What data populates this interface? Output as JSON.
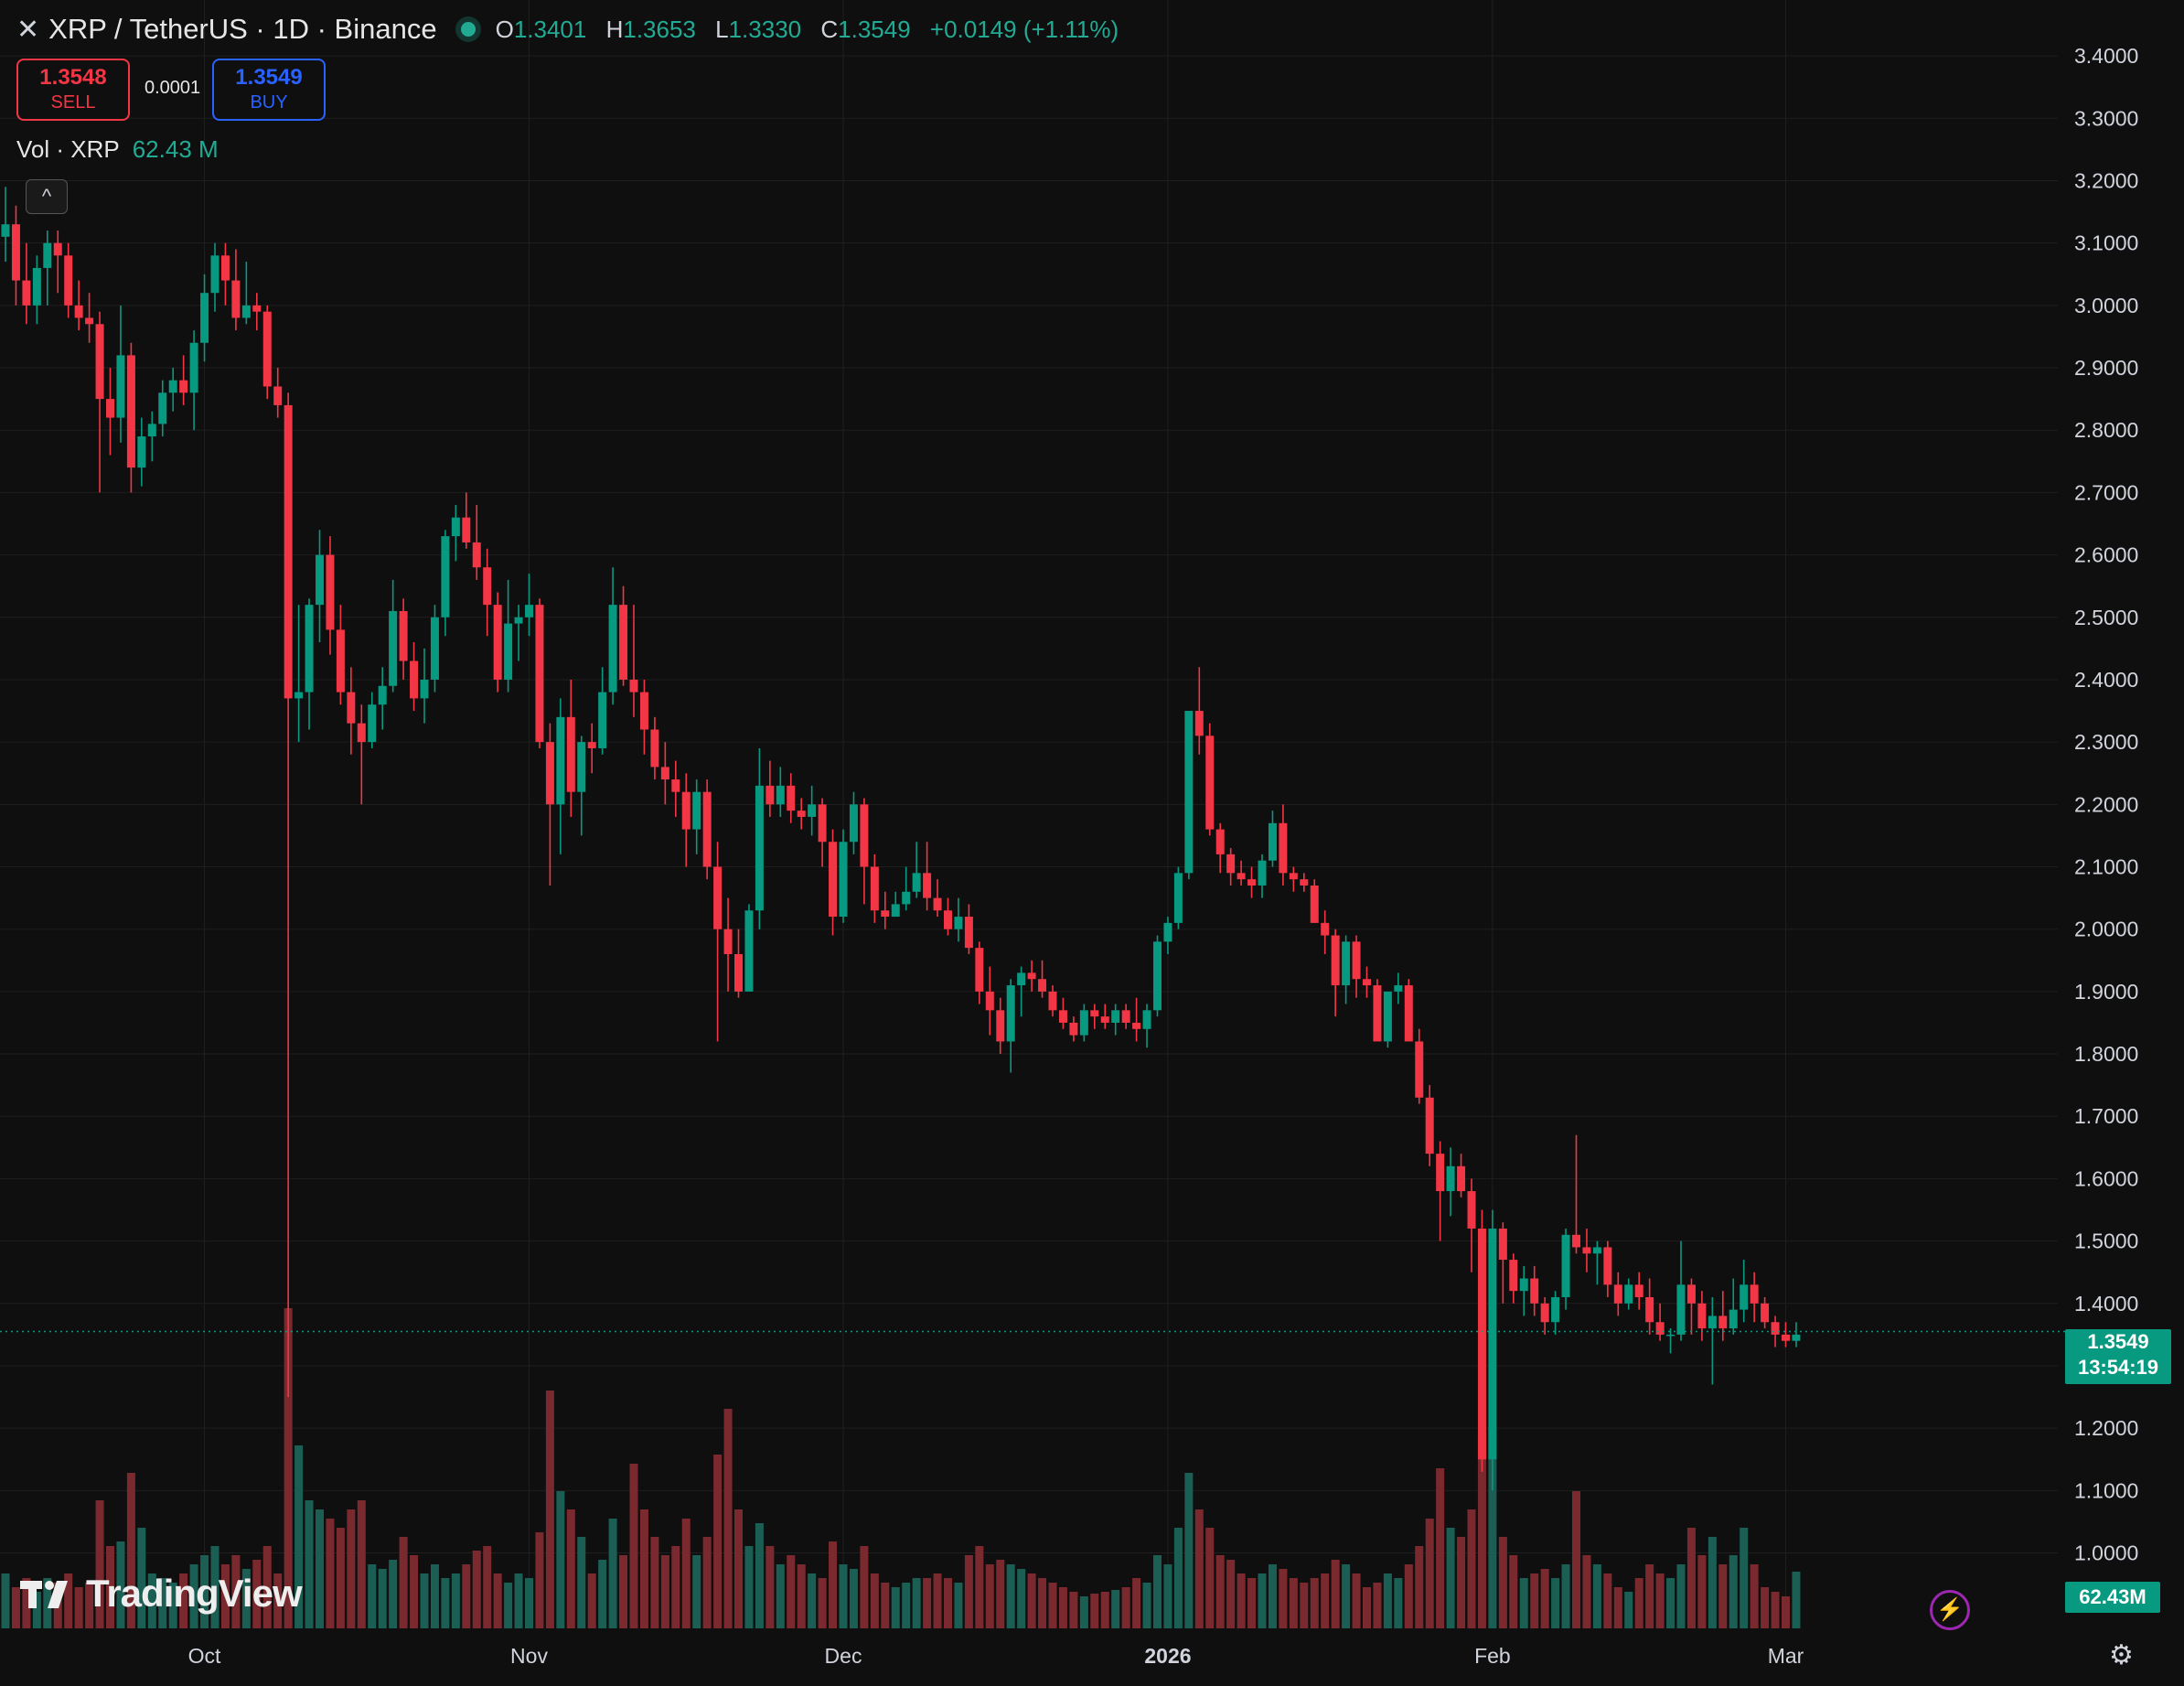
{
  "header": {
    "close_icon": "close-icon",
    "symbol": "XRP / TetherUS · 1D · Binance",
    "open_label": "O",
    "open": "1.3401",
    "high_label": "H",
    "high": "1.3653",
    "low_label": "L",
    "low": "1.3330",
    "close_label": "C",
    "close": "1.3549",
    "change": "+0.0149 (+1.11%)"
  },
  "trade": {
    "sell_price": "1.3548",
    "sell_label": "SELL",
    "spread": "0.0001",
    "buy_price": "1.3549",
    "buy_label": "BUY"
  },
  "volume_legend": {
    "label": "Vol · XRP",
    "value": "62.43 M"
  },
  "last_price": {
    "price": "1.3549",
    "countdown": "13:54:19"
  },
  "last_volume": "62.43M",
  "logo_text": "TradingView",
  "colors": {
    "up": "#089981",
    "down": "#f23645",
    "background": "#0f0f0f",
    "grid": "#1f1f1f",
    "text": "#d1d4dc",
    "up_volume": "#1b5e54",
    "down_volume": "#7a2a2e"
  },
  "chart_data": {
    "type": "candlestick",
    "title": "XRP / TetherUS · 1D · Binance",
    "ylim": [
      0.97,
      3.45
    ],
    "y_ticks": [
      "3.4000",
      "3.3000",
      "3.2000",
      "3.1000",
      "3.0000",
      "2.9000",
      "2.8000",
      "2.7000",
      "2.6000",
      "2.5000",
      "2.4000",
      "2.3000",
      "2.2000",
      "2.1000",
      "2.0000",
      "1.9000",
      "1.8000",
      "1.7000",
      "1.6000",
      "1.5000",
      "1.4000",
      "1.3000",
      "1.2000",
      "1.1000",
      "1.0000"
    ],
    "x_ticks": [
      "Oct",
      "Nov",
      "Dec",
      "2026",
      "Feb",
      "Mar"
    ],
    "x_tick_index": [
      19,
      50,
      80,
      111,
      142,
      170
    ],
    "grid": true,
    "volume_unit": "M",
    "ohlcv": [
      [
        3.11,
        3.19,
        3.07,
        3.13,
        60
      ],
      [
        3.13,
        3.16,
        3.0,
        3.04,
        45
      ],
      [
        3.04,
        3.1,
        2.97,
        3.0,
        55
      ],
      [
        3.0,
        3.08,
        2.97,
        3.06,
        40
      ],
      [
        3.06,
        3.12,
        3.0,
        3.1,
        55
      ],
      [
        3.1,
        3.12,
        3.02,
        3.08,
        50
      ],
      [
        3.08,
        3.1,
        2.98,
        3.0,
        60
      ],
      [
        3.0,
        3.04,
        2.96,
        2.98,
        45
      ],
      [
        2.98,
        3.02,
        2.94,
        2.97,
        50
      ],
      [
        2.97,
        2.99,
        2.7,
        2.85,
        140
      ],
      [
        2.85,
        2.9,
        2.76,
        2.82,
        90
      ],
      [
        2.82,
        3.0,
        2.78,
        2.92,
        95
      ],
      [
        2.92,
        2.94,
        2.7,
        2.74,
        170
      ],
      [
        2.74,
        2.82,
        2.71,
        2.79,
        110
      ],
      [
        2.79,
        2.83,
        2.75,
        2.81,
        60
      ],
      [
        2.81,
        2.88,
        2.79,
        2.86,
        55
      ],
      [
        2.86,
        2.9,
        2.83,
        2.88,
        50
      ],
      [
        2.88,
        2.92,
        2.84,
        2.86,
        60
      ],
      [
        2.86,
        2.96,
        2.8,
        2.94,
        70
      ],
      [
        2.94,
        3.05,
        2.91,
        3.02,
        80
      ],
      [
        3.02,
        3.1,
        2.99,
        3.08,
        90
      ],
      [
        3.08,
        3.1,
        3.0,
        3.04,
        70
      ],
      [
        3.04,
        3.09,
        2.96,
        2.98,
        80
      ],
      [
        2.98,
        3.07,
        2.97,
        3.0,
        65
      ],
      [
        3.0,
        3.02,
        2.96,
        2.99,
        75
      ],
      [
        2.99,
        3.0,
        2.85,
        2.87,
        90
      ],
      [
        2.87,
        2.9,
        2.82,
        2.84,
        60
      ],
      [
        2.84,
        2.86,
        1.25,
        2.37,
        350
      ],
      [
        2.37,
        2.52,
        2.3,
        2.38,
        200
      ],
      [
        2.38,
        2.53,
        2.32,
        2.52,
        140
      ],
      [
        2.52,
        2.64,
        2.46,
        2.6,
        130
      ],
      [
        2.6,
        2.63,
        2.44,
        2.48,
        120
      ],
      [
        2.48,
        2.52,
        2.36,
        2.38,
        110
      ],
      [
        2.38,
        2.42,
        2.28,
        2.33,
        130
      ],
      [
        2.33,
        2.36,
        2.2,
        2.3,
        140
      ],
      [
        2.3,
        2.38,
        2.29,
        2.36,
        70
      ],
      [
        2.36,
        2.42,
        2.32,
        2.39,
        65
      ],
      [
        2.39,
        2.56,
        2.38,
        2.51,
        75
      ],
      [
        2.51,
        2.53,
        2.4,
        2.43,
        100
      ],
      [
        2.43,
        2.46,
        2.35,
        2.37,
        80
      ],
      [
        2.37,
        2.45,
        2.33,
        2.4,
        60
      ],
      [
        2.4,
        2.52,
        2.38,
        2.5,
        70
      ],
      [
        2.5,
        2.64,
        2.47,
        2.63,
        55
      ],
      [
        2.63,
        2.68,
        2.59,
        2.66,
        60
      ],
      [
        2.66,
        2.7,
        2.61,
        2.62,
        70
      ],
      [
        2.62,
        2.68,
        2.56,
        2.58,
        85
      ],
      [
        2.58,
        2.61,
        2.47,
        2.52,
        90
      ],
      [
        2.52,
        2.54,
        2.38,
        2.4,
        60
      ],
      [
        2.4,
        2.56,
        2.38,
        2.49,
        50
      ],
      [
        2.49,
        2.52,
        2.43,
        2.5,
        60
      ],
      [
        2.5,
        2.57,
        2.47,
        2.52,
        55
      ],
      [
        2.52,
        2.53,
        2.29,
        2.3,
        105
      ],
      [
        2.3,
        2.33,
        2.07,
        2.2,
        260
      ],
      [
        2.2,
        2.37,
        2.12,
        2.34,
        150
      ],
      [
        2.34,
        2.4,
        2.18,
        2.22,
        130
      ],
      [
        2.22,
        2.31,
        2.15,
        2.3,
        100
      ],
      [
        2.3,
        2.33,
        2.25,
        2.29,
        60
      ],
      [
        2.29,
        2.42,
        2.28,
        2.38,
        75
      ],
      [
        2.38,
        2.58,
        2.36,
        2.52,
        120
      ],
      [
        2.52,
        2.55,
        2.39,
        2.4,
        80
      ],
      [
        2.4,
        2.52,
        2.34,
        2.38,
        180
      ],
      [
        2.38,
        2.4,
        2.28,
        2.32,
        130
      ],
      [
        2.32,
        2.34,
        2.24,
        2.26,
        100
      ],
      [
        2.26,
        2.3,
        2.2,
        2.24,
        80
      ],
      [
        2.24,
        2.27,
        2.18,
        2.22,
        90
      ],
      [
        2.22,
        2.25,
        2.1,
        2.16,
        120
      ],
      [
        2.16,
        2.24,
        2.12,
        2.22,
        80
      ],
      [
        2.22,
        2.24,
        2.08,
        2.1,
        100
      ],
      [
        2.1,
        2.14,
        1.82,
        2.0,
        190
      ],
      [
        2.0,
        2.05,
        1.9,
        1.96,
        240
      ],
      [
        1.96,
        2.0,
        1.89,
        1.9,
        130
      ],
      [
        1.9,
        2.04,
        1.9,
        2.03,
        90
      ],
      [
        2.03,
        2.29,
        2.0,
        2.23,
        115
      ],
      [
        2.23,
        2.27,
        2.18,
        2.2,
        90
      ],
      [
        2.2,
        2.26,
        2.18,
        2.23,
        70
      ],
      [
        2.23,
        2.25,
        2.17,
        2.19,
        80
      ],
      [
        2.19,
        2.21,
        2.16,
        2.18,
        70
      ],
      [
        2.18,
        2.23,
        2.15,
        2.2,
        60
      ],
      [
        2.2,
        2.21,
        2.1,
        2.14,
        55
      ],
      [
        2.14,
        2.16,
        1.99,
        2.02,
        95
      ],
      [
        2.02,
        2.16,
        2.01,
        2.14,
        70
      ],
      [
        2.14,
        2.22,
        2.12,
        2.2,
        65
      ],
      [
        2.2,
        2.21,
        2.04,
        2.1,
        90
      ],
      [
        2.1,
        2.12,
        2.01,
        2.03,
        60
      ],
      [
        2.03,
        2.06,
        2.0,
        2.02,
        50
      ],
      [
        2.02,
        2.06,
        2.02,
        2.04,
        45
      ],
      [
        2.04,
        2.1,
        2.03,
        2.06,
        50
      ],
      [
        2.06,
        2.14,
        2.05,
        2.09,
        55
      ],
      [
        2.09,
        2.14,
        2.03,
        2.05,
        55
      ],
      [
        2.05,
        2.08,
        2.02,
        2.03,
        60
      ],
      [
        2.03,
        2.05,
        1.99,
        2.0,
        55
      ],
      [
        2.0,
        2.05,
        1.98,
        2.02,
        50
      ],
      [
        2.02,
        2.04,
        1.96,
        1.97,
        80
      ],
      [
        1.97,
        1.98,
        1.88,
        1.9,
        90
      ],
      [
        1.9,
        1.94,
        1.83,
        1.87,
        70
      ],
      [
        1.87,
        1.89,
        1.8,
        1.82,
        75
      ],
      [
        1.82,
        1.92,
        1.77,
        1.91,
        70
      ],
      [
        1.91,
        1.94,
        1.86,
        1.93,
        65
      ],
      [
        1.93,
        1.95,
        1.9,
        1.92,
        60
      ],
      [
        1.92,
        1.95,
        1.89,
        1.9,
        55
      ],
      [
        1.9,
        1.91,
        1.86,
        1.87,
        50
      ],
      [
        1.87,
        1.89,
        1.84,
        1.85,
        45
      ],
      [
        1.85,
        1.86,
        1.82,
        1.83,
        40
      ],
      [
        1.83,
        1.88,
        1.82,
        1.87,
        35
      ],
      [
        1.87,
        1.88,
        1.84,
        1.86,
        38
      ],
      [
        1.86,
        1.88,
        1.84,
        1.85,
        40
      ],
      [
        1.85,
        1.88,
        1.83,
        1.87,
        42
      ],
      [
        1.87,
        1.88,
        1.84,
        1.85,
        45
      ],
      [
        1.85,
        1.89,
        1.82,
        1.84,
        55
      ],
      [
        1.84,
        1.88,
        1.81,
        1.87,
        50
      ],
      [
        1.87,
        1.99,
        1.86,
        1.98,
        80
      ],
      [
        1.98,
        2.02,
        1.96,
        2.01,
        70
      ],
      [
        2.01,
        2.1,
        2.0,
        2.09,
        110
      ],
      [
        2.09,
        2.35,
        2.08,
        2.35,
        170
      ],
      [
        2.35,
        2.42,
        2.28,
        2.31,
        130
      ],
      [
        2.31,
        2.33,
        2.15,
        2.16,
        110
      ],
      [
        2.16,
        2.17,
        2.09,
        2.12,
        80
      ],
      [
        2.12,
        2.13,
        2.07,
        2.09,
        75
      ],
      [
        2.09,
        2.11,
        2.07,
        2.08,
        60
      ],
      [
        2.08,
        2.1,
        2.05,
        2.07,
        55
      ],
      [
        2.07,
        2.12,
        2.05,
        2.11,
        60
      ],
      [
        2.11,
        2.19,
        2.1,
        2.17,
        70
      ],
      [
        2.17,
        2.2,
        2.07,
        2.09,
        65
      ],
      [
        2.09,
        2.1,
        2.06,
        2.08,
        55
      ],
      [
        2.08,
        2.09,
        2.06,
        2.07,
        50
      ],
      [
        2.07,
        2.08,
        2.01,
        2.01,
        55
      ],
      [
        2.01,
        2.03,
        1.96,
        1.99,
        60
      ],
      [
        1.99,
        2.0,
        1.86,
        1.91,
        75
      ],
      [
        1.91,
        1.99,
        1.88,
        1.98,
        70
      ],
      [
        1.98,
        1.99,
        1.89,
        1.92,
        60
      ],
      [
        1.92,
        1.94,
        1.89,
        1.91,
        45
      ],
      [
        1.91,
        1.92,
        1.85,
        1.82,
        50
      ],
      [
        1.82,
        1.9,
        1.81,
        1.9,
        60
      ],
      [
        1.9,
        1.93,
        1.88,
        1.91,
        55
      ],
      [
        1.91,
        1.92,
        1.83,
        1.82,
        70
      ],
      [
        1.82,
        1.84,
        1.72,
        1.73,
        90
      ],
      [
        1.73,
        1.75,
        1.62,
        1.64,
        120
      ],
      [
        1.64,
        1.66,
        1.5,
        1.58,
        175
      ],
      [
        1.58,
        1.65,
        1.54,
        1.62,
        110
      ],
      [
        1.62,
        1.64,
        1.57,
        1.58,
        100
      ],
      [
        1.58,
        1.6,
        1.45,
        1.52,
        130
      ],
      [
        1.52,
        1.55,
        1.13,
        1.15,
        210
      ],
      [
        1.15,
        1.55,
        1.1,
        1.52,
        220
      ],
      [
        1.52,
        1.53,
        1.4,
        1.47,
        100
      ],
      [
        1.47,
        1.48,
        1.4,
        1.42,
        80
      ],
      [
        1.42,
        1.46,
        1.38,
        1.44,
        55
      ],
      [
        1.44,
        1.46,
        1.38,
        1.4,
        60
      ],
      [
        1.4,
        1.41,
        1.35,
        1.37,
        65
      ],
      [
        1.37,
        1.42,
        1.35,
        1.41,
        55
      ],
      [
        1.41,
        1.52,
        1.39,
        1.51,
        70
      ],
      [
        1.51,
        1.67,
        1.48,
        1.49,
        150
      ],
      [
        1.49,
        1.52,
        1.45,
        1.48,
        80
      ],
      [
        1.48,
        1.5,
        1.43,
        1.49,
        70
      ],
      [
        1.49,
        1.5,
        1.41,
        1.43,
        60
      ],
      [
        1.43,
        1.45,
        1.38,
        1.4,
        45
      ],
      [
        1.4,
        1.44,
        1.39,
        1.43,
        40
      ],
      [
        1.43,
        1.45,
        1.39,
        1.41,
        55
      ],
      [
        1.41,
        1.44,
        1.35,
        1.37,
        70
      ],
      [
        1.37,
        1.4,
        1.34,
        1.35,
        60
      ],
      [
        1.35,
        1.36,
        1.32,
        1.35,
        55
      ],
      [
        1.35,
        1.5,
        1.34,
        1.43,
        70
      ],
      [
        1.43,
        1.44,
        1.35,
        1.4,
        110
      ],
      [
        1.4,
        1.42,
        1.34,
        1.36,
        80
      ],
      [
        1.36,
        1.41,
        1.27,
        1.38,
        100
      ],
      [
        1.38,
        1.42,
        1.34,
        1.36,
        70
      ],
      [
        1.36,
        1.44,
        1.35,
        1.39,
        80
      ],
      [
        1.39,
        1.47,
        1.37,
        1.43,
        110
      ],
      [
        1.43,
        1.45,
        1.37,
        1.4,
        70
      ],
      [
        1.4,
        1.41,
        1.36,
        1.37,
        45
      ],
      [
        1.37,
        1.38,
        1.33,
        1.35,
        40
      ],
      [
        1.35,
        1.37,
        1.33,
        1.34,
        35
      ],
      [
        1.34,
        1.37,
        1.33,
        1.35,
        62
      ]
    ]
  }
}
